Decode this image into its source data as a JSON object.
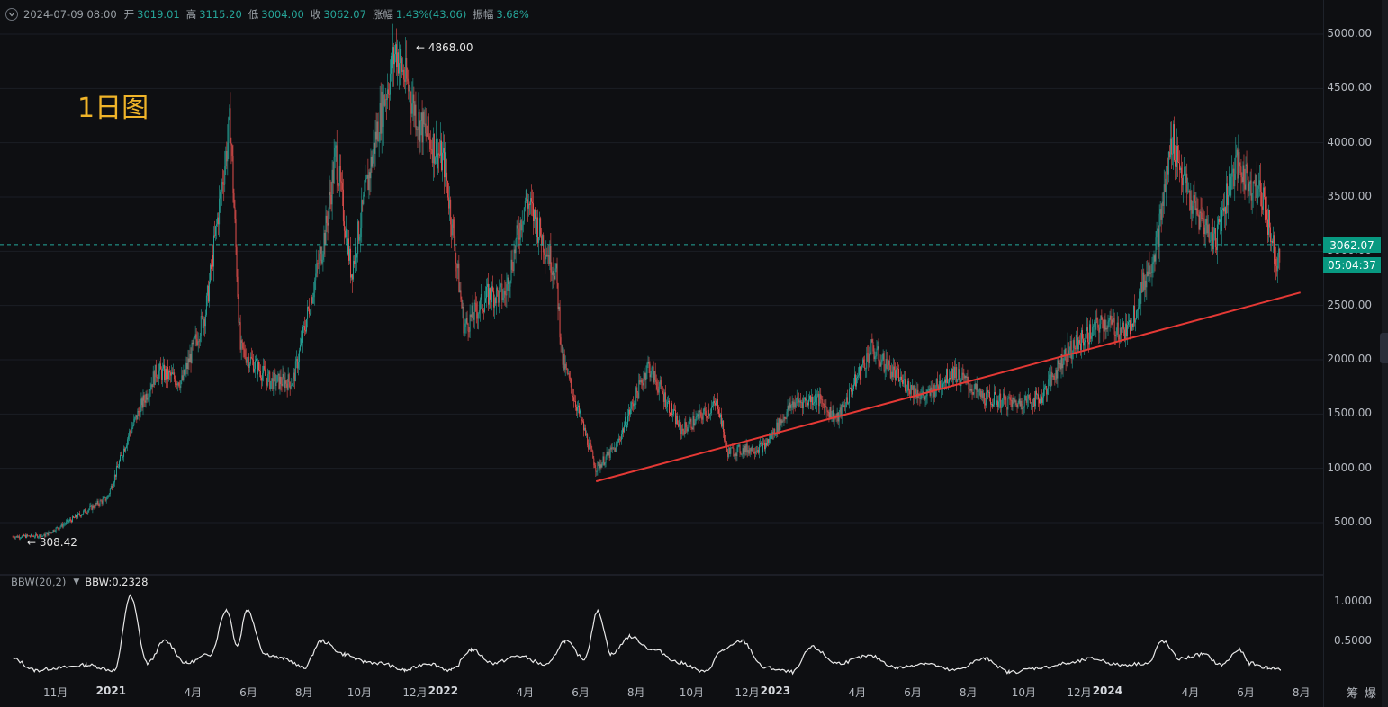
{
  "infobar": {
    "datetime": "2024-07-09 08:00",
    "open_label": "开",
    "open": "3019.01",
    "high_label": "高",
    "high": "3115.20",
    "low_label": "低",
    "low": "3004.00",
    "close_label": "收",
    "close": "3062.07",
    "change_label": "涨幅",
    "change": "1.43%(43.06)",
    "amplitude_label": "振幅",
    "amplitude": "3.68%"
  },
  "timeframe_title": "1日图",
  "price_axis": [
    "5000.00",
    "4500.00",
    "4000.00",
    "3500.00",
    "3000.00",
    "2500.00",
    "2000.00",
    "1500.00",
    "1000.00",
    "500.00"
  ],
  "current_price_tag": "3062.07",
  "countdown_tag": "05:04:37",
  "high_marker": "4868.00",
  "low_marker": "308.42",
  "indicator": {
    "name": "BBW(20,2)",
    "value_label": "BBW:0.2328",
    "axis": [
      "1.0000",
      "0.5000"
    ]
  },
  "time_axis": [
    {
      "label": "11月",
      "year": false
    },
    {
      "label": "2021",
      "year": true
    },
    {
      "label": "4月",
      "year": false
    },
    {
      "label": "6月",
      "year": false
    },
    {
      "label": "8月",
      "year": false
    },
    {
      "label": "10月",
      "year": false
    },
    {
      "label": "12月",
      "year": false
    },
    {
      "label": "2022",
      "year": true
    },
    {
      "label": "4月",
      "year": false
    },
    {
      "label": "6月",
      "year": false
    },
    {
      "label": "8月",
      "year": false
    },
    {
      "label": "10月",
      "year": false
    },
    {
      "label": "12月",
      "year": false
    },
    {
      "label": "2023",
      "year": true
    },
    {
      "label": "4月",
      "year": false
    },
    {
      "label": "6月",
      "year": false
    },
    {
      "label": "8月",
      "year": false
    },
    {
      "label": "10月",
      "year": false
    },
    {
      "label": "12月",
      "year": false
    },
    {
      "label": "2024",
      "year": true
    },
    {
      "label": "4月",
      "year": false
    },
    {
      "label": "6月",
      "year": false
    },
    {
      "label": "8月",
      "year": false
    }
  ],
  "corner_labels": [
    "筹",
    "爆"
  ],
  "colors": {
    "background": "#0e0f12",
    "up": "#26a69a",
    "down": "#ef5350",
    "trendline": "#e53935",
    "title": "#f0b429",
    "price_tag": "#089981"
  },
  "chart_data": {
    "type": "candlestick",
    "ylim": [
      0,
      5200
    ],
    "price_axis_ticks": [
      500,
      1000,
      1500,
      2000,
      2500,
      3000,
      3500,
      4000,
      4500,
      5000
    ],
    "current_price": 3062.07,
    "all_time_high": 4868.0,
    "period_low": 308.42,
    "trendline": {
      "from": {
        "date": "2022-06-18",
        "price": 880
      },
      "to": {
        "date": "2024-07-31",
        "price": 2620
      }
    },
    "series": [
      {
        "date": "2020-09-15",
        "close": 370
      },
      {
        "date": "2020-10-20",
        "close": 380
      },
      {
        "date": "2020-11-25",
        "close": 560
      },
      {
        "date": "2020-12-28",
        "close": 730
      },
      {
        "date": "2021-01-20",
        "close": 1300
      },
      {
        "date": "2021-02-20",
        "close": 1900
      },
      {
        "date": "2021-03-20",
        "close": 1800
      },
      {
        "date": "2021-04-15",
        "close": 2450
      },
      {
        "date": "2021-05-12",
        "close": 4200
      },
      {
        "date": "2021-05-23",
        "close": 2100
      },
      {
        "date": "2021-06-25",
        "close": 1800
      },
      {
        "date": "2021-07-20",
        "close": 1800
      },
      {
        "date": "2021-08-25",
        "close": 3200
      },
      {
        "date": "2021-09-05",
        "close": 3900
      },
      {
        "date": "2021-09-22",
        "close": 2800
      },
      {
        "date": "2021-10-20",
        "close": 4100
      },
      {
        "date": "2021-11-10",
        "close": 4868
      },
      {
        "date": "2021-12-05",
        "close": 4200
      },
      {
        "date": "2022-01-03",
        "close": 3800
      },
      {
        "date": "2022-01-24",
        "close": 2300
      },
      {
        "date": "2022-02-20",
        "close": 2600
      },
      {
        "date": "2022-03-10",
        "close": 2600
      },
      {
        "date": "2022-04-02",
        "close": 3500
      },
      {
        "date": "2022-05-05",
        "close": 2800
      },
      {
        "date": "2022-05-12",
        "close": 2000
      },
      {
        "date": "2022-06-18",
        "close": 1000
      },
      {
        "date": "2022-07-10",
        "close": 1200
      },
      {
        "date": "2022-08-14",
        "close": 1950
      },
      {
        "date": "2022-09-20",
        "close": 1350
      },
      {
        "date": "2022-10-30",
        "close": 1600
      },
      {
        "date": "2022-11-09",
        "close": 1150
      },
      {
        "date": "2022-12-20",
        "close": 1200
      },
      {
        "date": "2023-01-20",
        "close": 1600
      },
      {
        "date": "2023-02-15",
        "close": 1650
      },
      {
        "date": "2023-03-10",
        "close": 1450
      },
      {
        "date": "2023-04-16",
        "close": 2100
      },
      {
        "date": "2023-05-20",
        "close": 1800
      },
      {
        "date": "2023-06-15",
        "close": 1650
      },
      {
        "date": "2023-07-15",
        "close": 1900
      },
      {
        "date": "2023-08-17",
        "close": 1650
      },
      {
        "date": "2023-09-20",
        "close": 1600
      },
      {
        "date": "2023-10-20",
        "close": 1650
      },
      {
        "date": "2023-11-15",
        "close": 2050
      },
      {
        "date": "2023-12-28",
        "close": 2350
      },
      {
        "date": "2024-01-23",
        "close": 2250
      },
      {
        "date": "2024-02-25",
        "close": 3100
      },
      {
        "date": "2024-03-12",
        "close": 4050
      },
      {
        "date": "2024-04-01",
        "close": 3450
      },
      {
        "date": "2024-04-28",
        "close": 3100
      },
      {
        "date": "2024-05-20",
        "close": 3800
      },
      {
        "date": "2024-06-20",
        "close": 3500
      },
      {
        "date": "2024-07-05",
        "close": 2900
      },
      {
        "date": "2024-07-09",
        "close": 3062
      }
    ],
    "indicator_series": {
      "name": "BBW(20,2)",
      "ylim": [
        0,
        1.1
      ],
      "points": [
        [
          "2020-09-15",
          0.35
        ],
        [
          "2020-10-10",
          0.22
        ],
        [
          "2020-11-05",
          0.25
        ],
        [
          "2020-12-05",
          0.28
        ],
        [
          "2021-01-05",
          0.22
        ],
        [
          "2021-01-22",
          1.05
        ],
        [
          "2021-02-10",
          0.3
        ],
        [
          "2021-03-01",
          0.55
        ],
        [
          "2021-03-25",
          0.3
        ],
        [
          "2021-04-20",
          0.4
        ],
        [
          "2021-05-08",
          0.9
        ],
        [
          "2021-05-20",
          0.5
        ],
        [
          "2021-05-30",
          0.9
        ],
        [
          "2021-06-20",
          0.4
        ],
        [
          "2021-07-10",
          0.35
        ],
        [
          "2021-08-01",
          0.25
        ],
        [
          "2021-08-20",
          0.55
        ],
        [
          "2021-09-15",
          0.4
        ],
        [
          "2021-10-05",
          0.32
        ],
        [
          "2021-10-25",
          0.3
        ],
        [
          "2021-11-20",
          0.22
        ],
        [
          "2021-12-15",
          0.3
        ],
        [
          "2022-01-10",
          0.22
        ],
        [
          "2022-02-01",
          0.45
        ],
        [
          "2022-02-25",
          0.3
        ],
        [
          "2022-03-25",
          0.38
        ],
        [
          "2022-04-25",
          0.28
        ],
        [
          "2022-05-15",
          0.55
        ],
        [
          "2022-06-05",
          0.35
        ],
        [
          "2022-06-20",
          0.88
        ],
        [
          "2022-07-05",
          0.4
        ],
        [
          "2022-07-25",
          0.6
        ],
        [
          "2022-08-20",
          0.45
        ],
        [
          "2022-09-20",
          0.3
        ],
        [
          "2022-10-15",
          0.2
        ],
        [
          "2022-11-05",
          0.45
        ],
        [
          "2022-11-25",
          0.55
        ],
        [
          "2022-12-20",
          0.25
        ],
        [
          "2023-01-20",
          0.2
        ],
        [
          "2023-02-10",
          0.48
        ],
        [
          "2023-03-10",
          0.3
        ],
        [
          "2023-04-15",
          0.38
        ],
        [
          "2023-05-15",
          0.25
        ],
        [
          "2023-06-15",
          0.3
        ],
        [
          "2023-07-15",
          0.22
        ],
        [
          "2023-08-20",
          0.35
        ],
        [
          "2023-09-15",
          0.2
        ],
        [
          "2023-10-20",
          0.25
        ],
        [
          "2023-11-20",
          0.3
        ],
        [
          "2023-12-15",
          0.35
        ],
        [
          "2024-01-15",
          0.28
        ],
        [
          "2024-02-15",
          0.3
        ],
        [
          "2024-03-01",
          0.55
        ],
        [
          "2024-03-20",
          0.35
        ],
        [
          "2024-04-15",
          0.4
        ],
        [
          "2024-05-05",
          0.28
        ],
        [
          "2024-05-25",
          0.45
        ],
        [
          "2024-06-05",
          0.3
        ],
        [
          "2024-06-25",
          0.25
        ],
        [
          "2024-07-09",
          0.2328
        ]
      ]
    },
    "x_range": [
      "2020-09-01",
      "2024-08-25"
    ]
  }
}
